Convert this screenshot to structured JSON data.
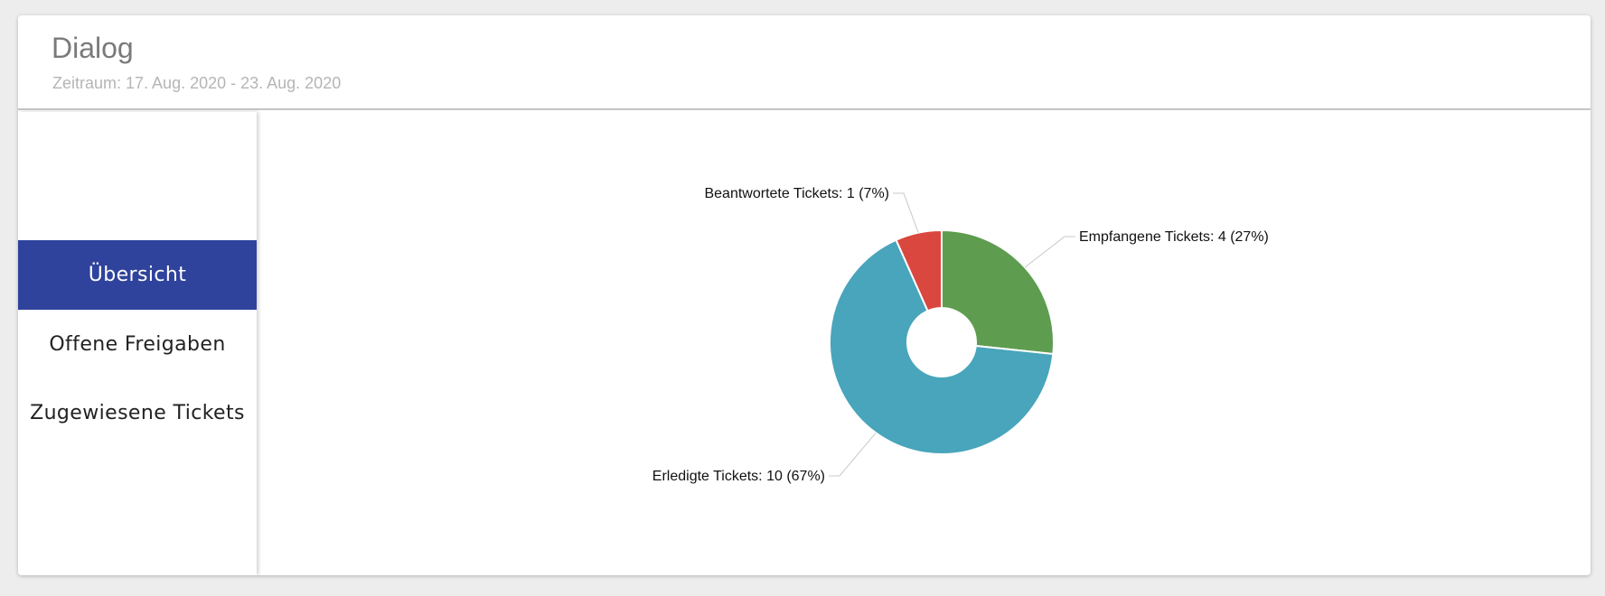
{
  "header": {
    "title": "Dialog",
    "subtitle": "Zeitraum: 17. Aug. 2020 - 23. Aug. 2020"
  },
  "sidebar": {
    "items": [
      {
        "label": "Übersicht",
        "active": true
      },
      {
        "label": "Offene Freigaben",
        "active": false
      },
      {
        "label": "Zugewiesene Tickets",
        "active": false
      }
    ]
  },
  "colors": {
    "accent": "#2f439c",
    "empfangen": "#5e9c50",
    "erledigt": "#48a5bb",
    "beantwortet": "#d9473f"
  },
  "chart_data": {
    "type": "pie",
    "donut": true,
    "slices": [
      {
        "label": "Empfangene Tickets: 4 (27%)",
        "value": 4,
        "percent": 27,
        "color": "#5e9c50"
      },
      {
        "label": "Erledigte Tickets: 10 (67%)",
        "value": 10,
        "percent": 67,
        "color": "#48a5bb"
      },
      {
        "label": "Beantwortete Tickets: 1 (7%)",
        "value": 1,
        "percent": 7,
        "color": "#d9473f"
      }
    ]
  }
}
